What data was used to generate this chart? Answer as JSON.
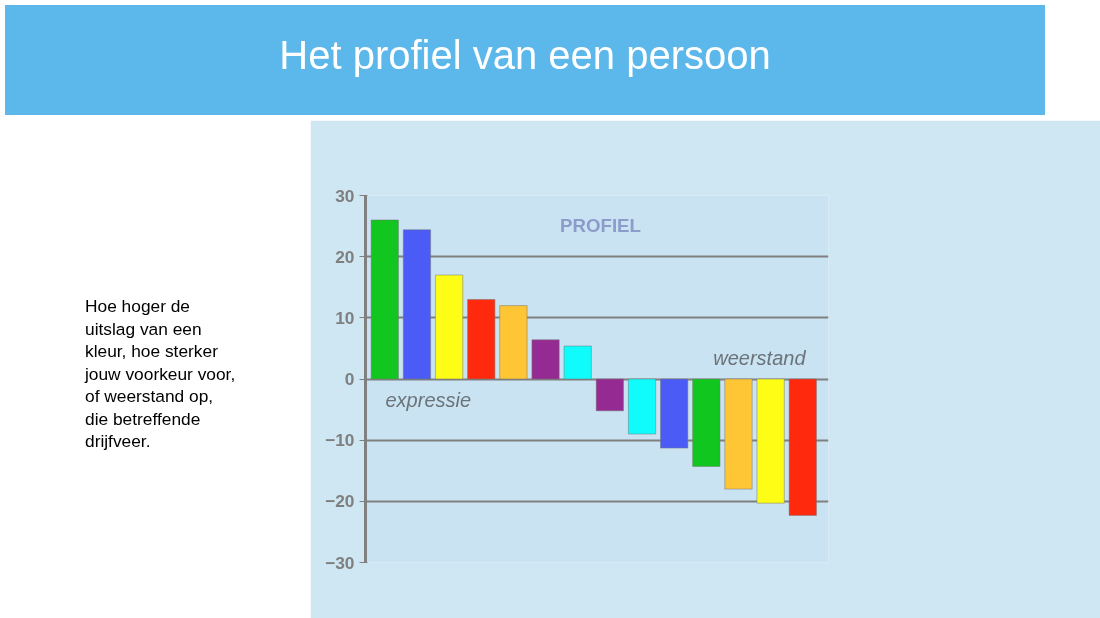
{
  "chart_data": {
    "type": "bar",
    "title": "Het profiel van een persoon",
    "categories": [
      null,
      null,
      null,
      null,
      null,
      null,
      null,
      null,
      null,
      null,
      null,
      null,
      null,
      null
    ],
    "values": [
      26,
      24.4,
      17,
      13,
      12,
      6.4,
      5.4,
      -5.2,
      -9,
      -11.3,
      -14.3,
      -18,
      -20.3,
      -22.3
    ],
    "colors": [
      "#11c61f",
      "#4a5cf5",
      "#fdfd15",
      "#ff2a0e",
      "#fec534",
      "#952b92",
      "#10fbfb",
      "#952b92",
      "#10fbfb",
      "#4a5cf5",
      "#11c61f",
      "#fec534",
      "#fdfd15",
      "#ff2a0e"
    ],
    "ylim": [
      -30,
      30
    ],
    "yticks": [
      -30,
      -20,
      -10,
      0,
      10,
      20,
      30
    ],
    "grid": "y",
    "tick_labels": "y",
    "annotations": [
      "PROFIEL",
      "expressie",
      "weerstand",
      "Hoe hoger de\nuitslag van een\nkleur, hoe sterker\njouw voorkeur voor,\nof weerstand op,\ndie betreffende\ndrijfveer."
    ]
  }
}
